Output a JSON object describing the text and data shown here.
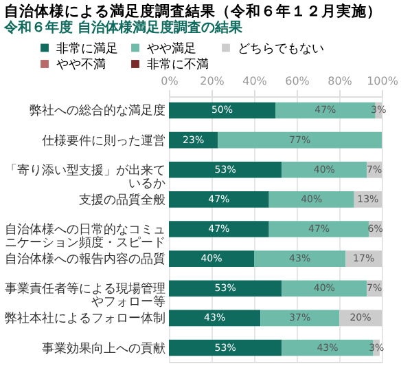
{
  "chart_data": {
    "type": "bar",
    "orientation": "horizontal",
    "stacked": true,
    "title": "自治体様による満足度調査結果（令和６年１２月実施）",
    "subtitle": "令和６年度 自治体様満足度調査の結果",
    "categories": [
      "弊社への総合的な満足度",
      "仕様要件に則った運営",
      "「寄り添い型支援」が出来ているか",
      "支援の品質全般",
      "自治体様への日常的なコミュニケーション頻度・スピード",
      "自治体様への報告内容の品質",
      "事業責任者等による現場管理やフォロー等",
      "弊社本社によるフォロー体制",
      "事業効果向上への貢献"
    ],
    "series": [
      {
        "name": "非常に満足",
        "color": "#0e6b5e",
        "values": [
          50,
          23,
          53,
          47,
          47,
          40,
          53,
          43,
          53
        ],
        "value_labels": [
          "50%",
          "23%",
          "53%",
          "47%",
          "47%",
          "40%",
          "53%",
          "43%",
          "53%"
        ]
      },
      {
        "name": "やや満足",
        "color": "#6dbba8",
        "values": [
          47,
          77,
          40,
          40,
          47,
          43,
          40,
          37,
          43
        ],
        "value_labels": [
          "47%",
          "77%",
          "40%",
          "40%",
          "47%",
          "43%",
          "40%",
          "37%",
          "43%"
        ]
      },
      {
        "name": "どちらでもない",
        "color": "#cccccc",
        "values": [
          3,
          0,
          7,
          13,
          6,
          17,
          7,
          20,
          3
        ],
        "value_labels": [
          "3%",
          null,
          "7%",
          "13%",
          "6%",
          "17%",
          "7%",
          "20%",
          "3%"
        ]
      },
      {
        "name": "やや不満",
        "color": "#b86a6a",
        "values": [
          0,
          0,
          0,
          0,
          0,
          0,
          0,
          0,
          0
        ]
      },
      {
        "name": "非常に不満",
        "color": "#7a2a2a",
        "values": [
          0,
          0,
          0,
          0,
          0,
          0,
          0,
          0,
          0
        ]
      }
    ],
    "xlim": [
      0,
      100
    ],
    "xticks": [
      {
        "value": 0,
        "label": "0%"
      },
      {
        "value": 20,
        "label": "20%"
      },
      {
        "value": 40,
        "label": "40%"
      },
      {
        "value": 60,
        "label": "60%"
      },
      {
        "value": 80,
        "label": "80%"
      },
      {
        "value": 100,
        "label": "100%"
      }
    ],
    "grid": "x",
    "legend": "top"
  }
}
